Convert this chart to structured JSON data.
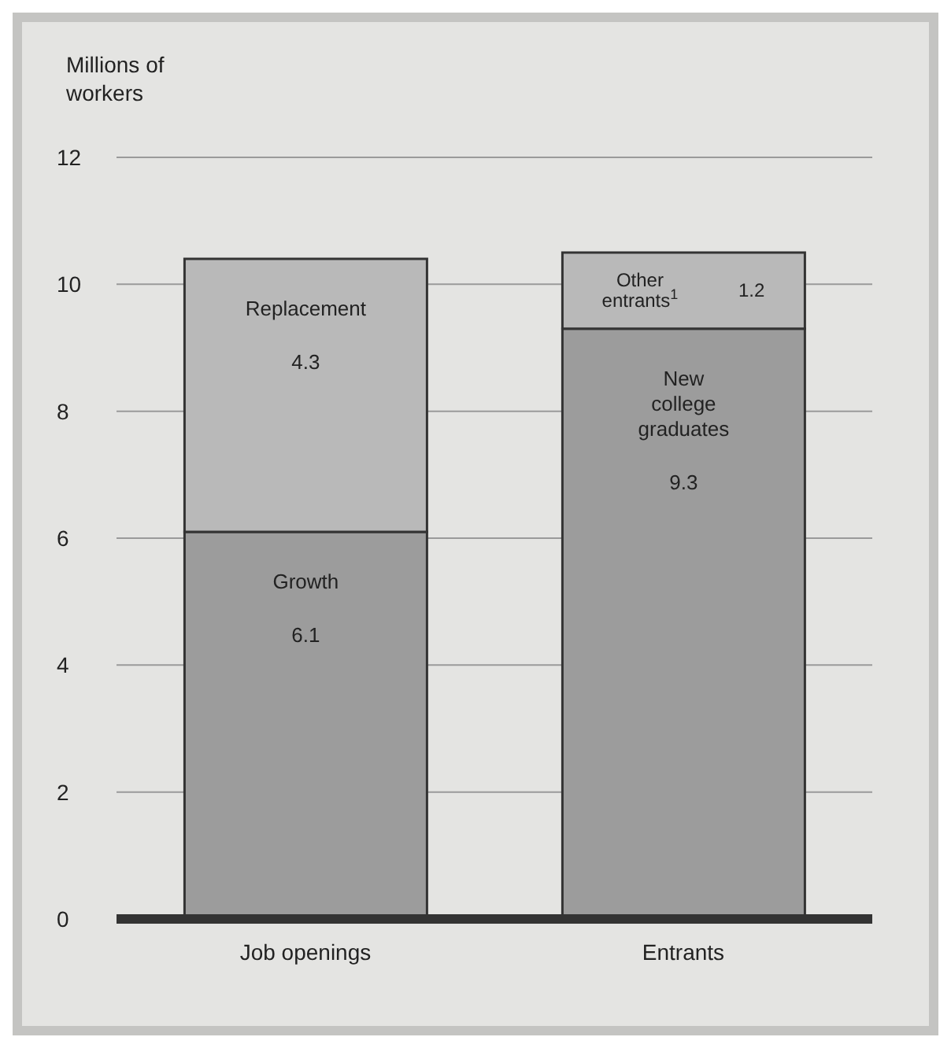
{
  "chart_data": {
    "type": "bar",
    "stacked": true,
    "ylabel": "Millions of\nworkers",
    "categories": [
      "Job openings",
      "Entrants"
    ],
    "series": [
      {
        "name": "Growth",
        "color": "#9c9c9c",
        "values": [
          6.1,
          null
        ]
      },
      {
        "name": "New college graduates",
        "color": "#9c9c9c",
        "values": [
          null,
          9.3
        ]
      },
      {
        "name": "Replacement",
        "color": "#b9b9b9",
        "values": [
          4.3,
          null
        ]
      },
      {
        "name": "Other entrants$^{1}$",
        "color": "#b9b9b9",
        "values": [
          null,
          1.2
        ]
      }
    ],
    "ylim": [
      0,
      12
    ],
    "yticks": [
      0,
      2,
      4,
      6,
      8,
      10,
      12
    ],
    "grid": "y",
    "data_labels": true
  }
}
